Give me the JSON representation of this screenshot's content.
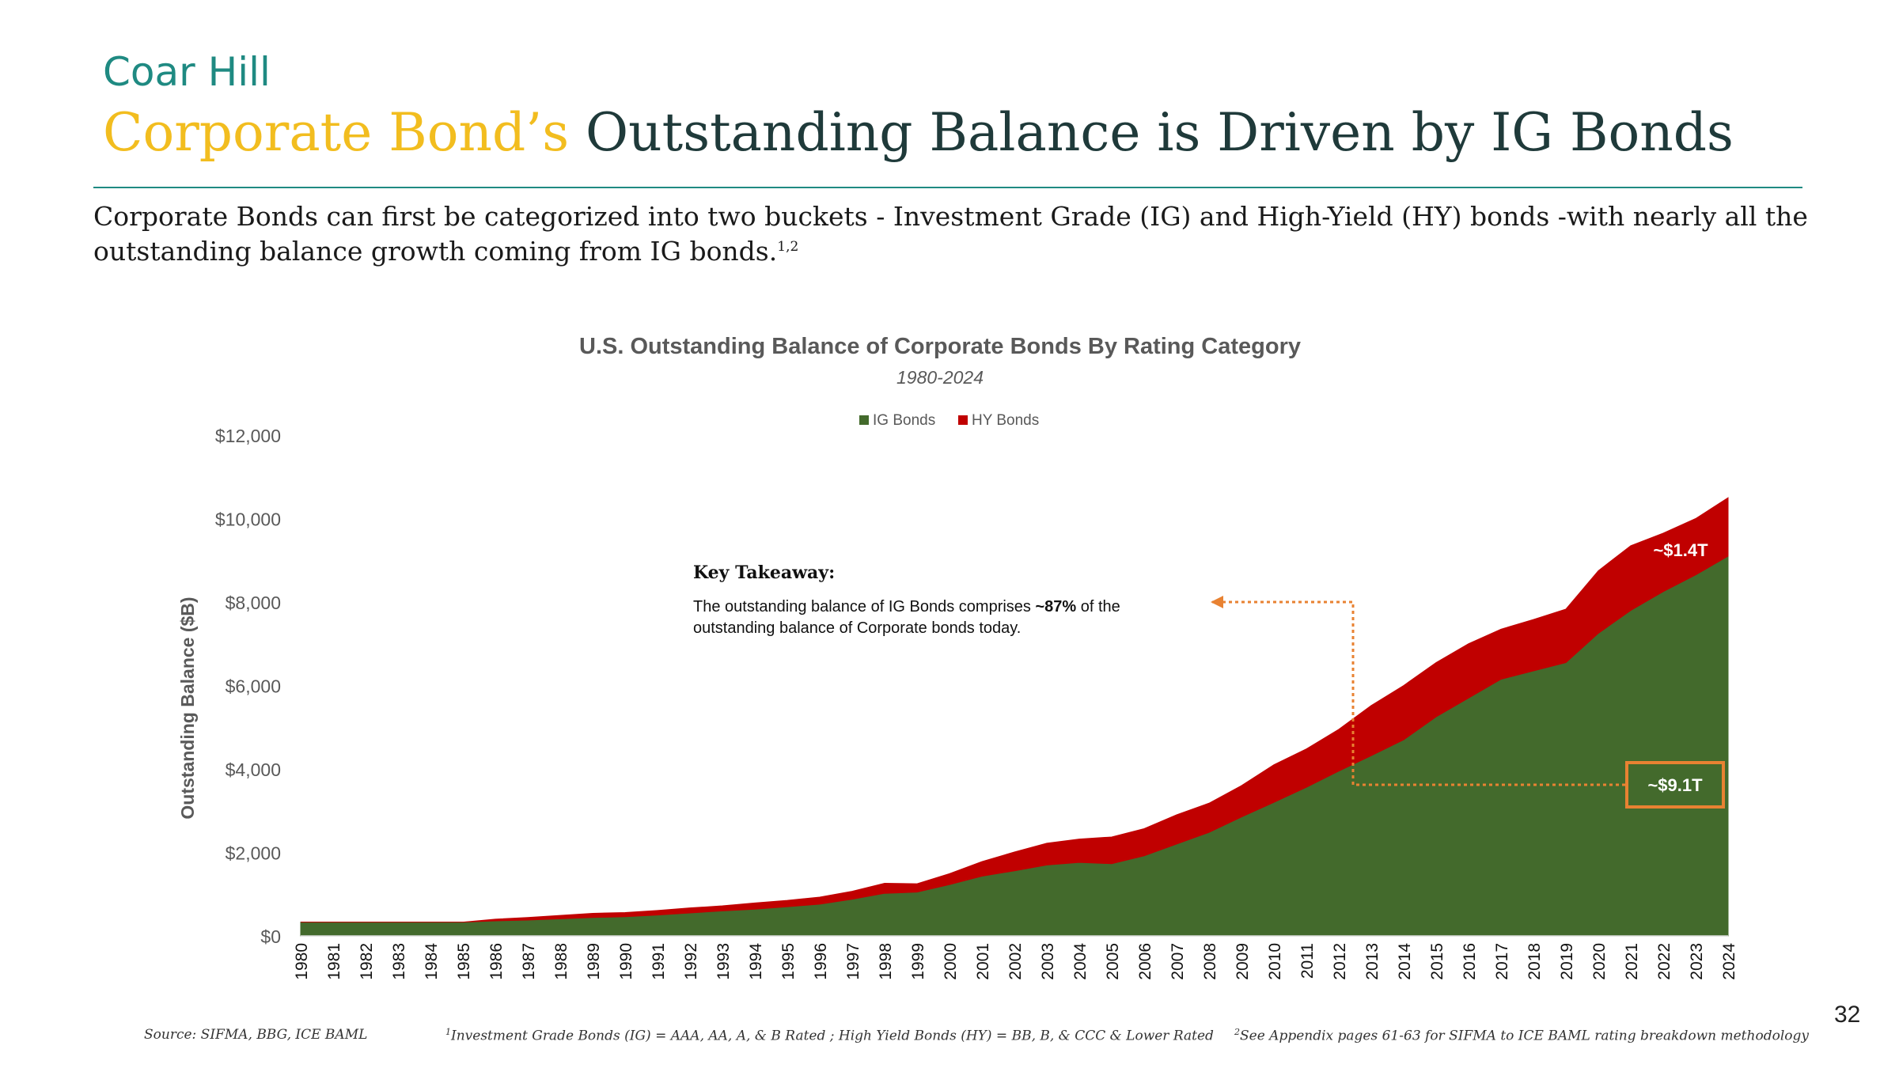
{
  "brand": "Coar Hill",
  "headline": {
    "accent": "Corporate Bond’s",
    "main": " Outstanding Balance is Driven by IG Bonds"
  },
  "intro": {
    "text": "Corporate Bonds can first be categorized into two buckets - Investment Grade (IG) and High-Yield (HY) bonds -with nearly all the outstanding balance growth coming from IG bonds.",
    "note": "1,2"
  },
  "chart_data": {
    "type": "area",
    "stacked": true,
    "title": "U.S. Outstanding Balance of Corporate Bonds By Rating Category",
    "subtitle": "1980-2024",
    "ylabel": "Outstanding Balance ($B)",
    "xlabel": "",
    "ylim": [
      0,
      12000
    ],
    "yticks": [
      0,
      2000,
      4000,
      6000,
      8000,
      10000,
      12000
    ],
    "ytick_labels": [
      "$0",
      "$2,000",
      "$4,000",
      "$6,000",
      "$8,000",
      "$10,000",
      "$12,000"
    ],
    "legend_position": "top-center",
    "grid": false,
    "categories": [
      "1980",
      "1981",
      "1982",
      "1983",
      "1984",
      "1985",
      "1986",
      "1987",
      "1988",
      "1989",
      "1990",
      "1991",
      "1992",
      "1993",
      "1994",
      "1995",
      "1996",
      "1997",
      "1998",
      "1999",
      "2000",
      "2001",
      "2002",
      "2003",
      "2004",
      "2005",
      "2006",
      "2007",
      "2008",
      "2009",
      "2010",
      "2011",
      "2012",
      "2013",
      "2014",
      "2015",
      "2016",
      "2017",
      "2018",
      "2019",
      "2020",
      "2021",
      "2022",
      "2023",
      "2024"
    ],
    "series": [
      {
        "name": "IG Bonds",
        "color": "#436a2c",
        "values": [
          330,
          330,
          330,
          330,
          330,
          330,
          360,
          380,
          410,
          440,
          460,
          500,
          550,
          600,
          640,
          700,
          760,
          880,
          1020,
          1050,
          1230,
          1430,
          1560,
          1700,
          1760,
          1730,
          1920,
          2200,
          2480,
          2850,
          3200,
          3560,
          3950,
          4320,
          4700,
          5250,
          5700,
          6150,
          6350,
          6550,
          7250,
          7800,
          8250,
          8650,
          9100
        ]
      },
      {
        "name": "HY Bonds",
        "color": "#c00000",
        "values": [
          0,
          0,
          0,
          0,
          0,
          0,
          40,
          60,
          80,
          100,
          100,
          110,
          120,
          120,
          150,
          150,
          170,
          190,
          240,
          200,
          260,
          350,
          450,
          520,
          560,
          640,
          650,
          700,
          700,
          750,
          900,
          920,
          1000,
          1200,
          1300,
          1300,
          1300,
          1200,
          1230,
          1280,
          1500,
          1550,
          1400,
          1350,
          1400
        ]
      }
    ],
    "annotations": {
      "hy_label": "~$1.4T",
      "ig_label": "~$9.1T",
      "callout_title": "Key Takeaway:",
      "callout_line1_pre": "The outstanding balance of IG Bonds comprises ",
      "callout_line1_bold": "~87%",
      "callout_line1_post": " of the",
      "callout_line2": "outstanding balance of Corporate bonds today.",
      "callout_color": "#e88232"
    }
  },
  "footer": {
    "source": "Source: SIFMA, BBG, ICE BAML",
    "note1_mark": "1",
    "note1": "Investment Grade Bonds (IG) = AAA, AA, A, & B Rated ; High Yield Bonds (HY) = BB, B, & CCC & Lower Rated",
    "note2_mark": "2",
    "note2": "See Appendix pages 61-63 for SIFMA to ICE BAML rating breakdown methodology"
  },
  "page_number": "32"
}
